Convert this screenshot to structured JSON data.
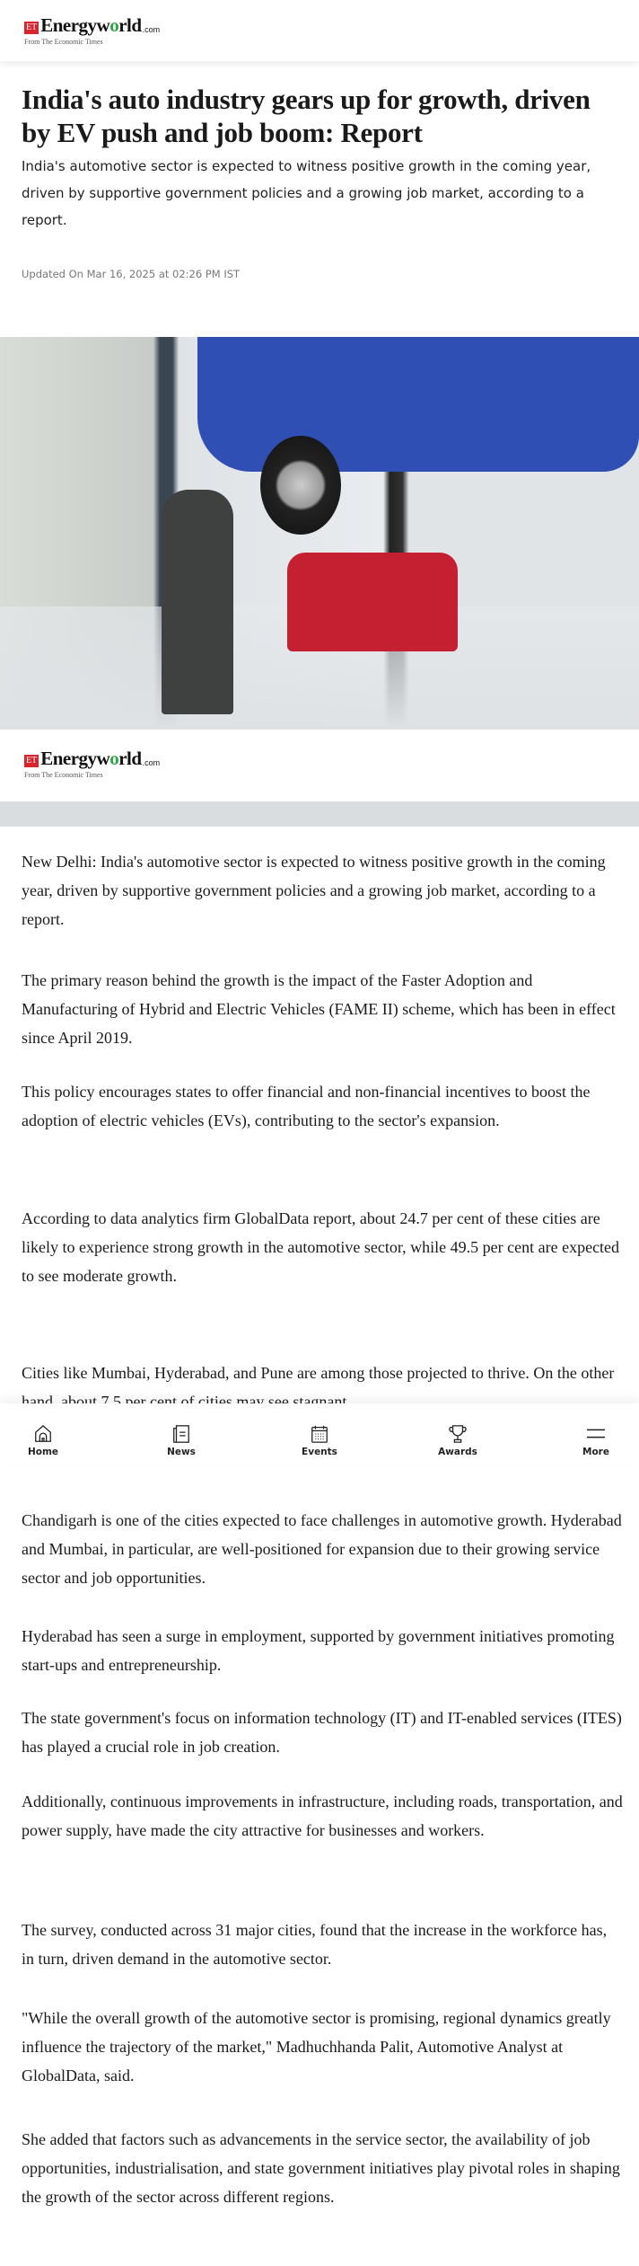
{
  "header": {
    "logo": {
      "badge": "ET",
      "name_pre": "Energyw",
      "name_o": "o",
      "name_post": "rld",
      ".com": ".com",
      "tagline": "From The Economic Times"
    }
  },
  "article": {
    "title": "India's auto industry gears up for growth, driven by EV push and job boom: Report",
    "summary": "India's automotive sector is expected to witness positive growth in the coming year, driven by supportive government policies and a growing job market, according to a report.",
    "updated": "Updated On Mar 16, 2025 at 02:26 PM IST",
    "paragraphs": [
      "New Delhi: India's automotive sector is expected to witness positive growth in the coming year, driven by supportive government policies and a growing job market, according to a report.",
      "The primary reason behind the growth is the impact of the Faster Adoption and Manufacturing of Hybrid and Electric Vehicles (FAME II) scheme, which has been in effect since April 2019.",
      "This policy encourages states to offer financial and non-financial incentives to boost the adoption of electric vehicles (EVs), contributing to the sector's expansion.",
      "According to data analytics firm GlobalData report, about 24.7 per cent of these cities are likely to experience strong growth in the automotive sector, while 49.5 per cent are expected to see moderate growth.",
      "Cities like Mumbai, Hyderabad, and Pune are among those projected to thrive. On the other hand, about 7.5 per cent of cities may see stagnant",
      "Chandigarh is one of the cities expected to face challenges in automotive growth. Hyderabad and Mumbai, in particular, are well-positioned for expansion due to their growing service sector and job opportunities.",
      "Hyderabad has seen a surge in employment, supported by government initiatives promoting start-ups and entrepreneurship.",
      "The state government's focus on information technology (IT) and IT-enabled services (ITES) has played a crucial role in job creation.",
      "Additionally, continuous improvements in infrastructure, including roads, transportation, and power supply, have made the city attractive for businesses and workers.",
      "The survey, conducted across 31 major cities, found that the increase in the workforce has, in turn, driven demand in the automotive sector.",
      "\"While the overall growth of the automotive sector is promising, regional dynamics greatly influence the trajectory of the market,\" Madhuchhanda Palit, Automotive Analyst at GlobalData, said.",
      "She added that factors such as advancements in the service sector, the availability of job opportunities, industrialisation, and state government initiatives play pivotal roles in shaping the growth of the sector across different regions."
    ]
  },
  "nav": {
    "items": [
      {
        "label": "Home",
        "icon": "home-icon"
      },
      {
        "label": "News",
        "icon": "newspaper-icon"
      },
      {
        "label": "Events",
        "icon": "calendar-icon"
      },
      {
        "label": "Awards",
        "icon": "trophy-icon"
      },
      {
        "label": "More",
        "icon": "menu-icon"
      }
    ]
  },
  "colors": {
    "brand_red": "#d9232d",
    "brand_green": "#2aa845"
  }
}
